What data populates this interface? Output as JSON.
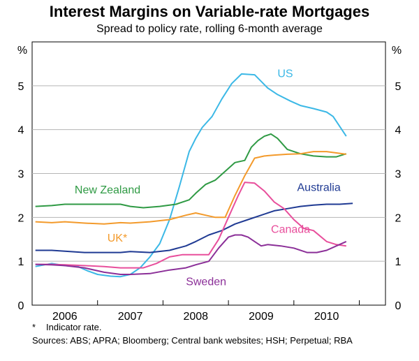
{
  "chart_data": {
    "type": "line",
    "title": "Interest Margins on Variable-rate Mortgages",
    "subtitle": "Spread to policy rate, rolling 6-month average",
    "ylabel_left": "%",
    "ylabel_right": "%",
    "ylim": [
      0,
      6
    ],
    "xlim": [
      2005.5,
      2010.9
    ],
    "yticks": [
      0,
      1,
      2,
      3,
      4,
      5
    ],
    "ytick_labels": [
      "0",
      "1",
      "2",
      "3",
      "4",
      "5"
    ],
    "xtick_labels": [
      {
        "label": "2006",
        "x": 2006
      },
      {
        "label": "2007",
        "x": 2007
      },
      {
        "label": "2008",
        "x": 2008
      },
      {
        "label": "2009",
        "x": 2009
      },
      {
        "label": "2010",
        "x": 2010
      }
    ],
    "series": [
      {
        "name": "US",
        "label": "US",
        "color": "#3bb8e6",
        "label_pos": {
          "x": 2009.25,
          "y": 5.2
        },
        "x": [
          2005.55,
          2005.8,
          2006.0,
          2006.2,
          2006.35,
          2006.5,
          2006.7,
          2006.85,
          2007.0,
          2007.15,
          2007.3,
          2007.45,
          2007.6,
          2007.75,
          2007.9,
          2008.0,
          2008.1,
          2008.25,
          2008.4,
          2008.55,
          2008.7,
          2008.8,
          2008.9,
          2009.0,
          2009.1,
          2009.25,
          2009.45,
          2009.6,
          2009.8,
          2010.0,
          2010.1,
          2010.3
        ],
        "values": [
          0.88,
          0.95,
          0.9,
          0.88,
          0.78,
          0.7,
          0.66,
          0.65,
          0.7,
          0.85,
          1.1,
          1.4,
          1.95,
          2.7,
          3.5,
          3.8,
          4.05,
          4.3,
          4.7,
          5.05,
          5.27,
          5.26,
          5.25,
          5.1,
          4.95,
          4.8,
          4.65,
          4.55,
          4.48,
          4.4,
          4.3,
          3.85
        ]
      },
      {
        "name": "New Zealand",
        "label": "New Zealand",
        "color": "#2f9a44",
        "label_pos": {
          "x": 2006.15,
          "y": 2.55
        },
        "x": [
          2005.55,
          2005.8,
          2006.0,
          2006.3,
          2006.6,
          2006.85,
          2007.0,
          2007.2,
          2007.45,
          2007.7,
          2007.9,
          2008.0,
          2008.15,
          2008.3,
          2008.45,
          2008.6,
          2008.75,
          2008.85,
          2008.95,
          2009.05,
          2009.15,
          2009.25,
          2009.4,
          2009.6,
          2009.8,
          2010.0,
          2010.15,
          2010.3
        ],
        "values": [
          2.25,
          2.27,
          2.3,
          2.3,
          2.3,
          2.3,
          2.25,
          2.22,
          2.25,
          2.3,
          2.4,
          2.55,
          2.75,
          2.85,
          3.05,
          3.25,
          3.3,
          3.6,
          3.75,
          3.85,
          3.9,
          3.8,
          3.55,
          3.45,
          3.4,
          3.38,
          3.38,
          3.45
        ]
      },
      {
        "name": "UK*",
        "label": "UK*",
        "color": "#f39a2b",
        "label_pos": {
          "x": 2006.65,
          "y": 1.45
        },
        "x": [
          2005.55,
          2005.8,
          2006.0,
          2006.3,
          2006.6,
          2006.85,
          2007.0,
          2007.3,
          2007.6,
          2007.85,
          2008.0,
          2008.15,
          2008.3,
          2008.45,
          2008.6,
          2008.75,
          2008.9,
          2009.05,
          2009.2,
          2009.4,
          2009.6,
          2009.8,
          2010.0,
          2010.15,
          2010.3
        ],
        "values": [
          1.9,
          1.88,
          1.9,
          1.87,
          1.85,
          1.88,
          1.87,
          1.9,
          1.95,
          2.05,
          2.1,
          2.05,
          2.0,
          2.0,
          2.5,
          2.95,
          3.35,
          3.4,
          3.42,
          3.44,
          3.45,
          3.5,
          3.5,
          3.47,
          3.44
        ]
      },
      {
        "name": "Australia",
        "label": "Australia",
        "color": "#1f3a93",
        "label_pos": {
          "x": 2009.55,
          "y": 2.6
        },
        "x": [
          2005.55,
          2005.8,
          2006.0,
          2006.3,
          2006.6,
          2006.85,
          2007.0,
          2007.3,
          2007.6,
          2007.85,
          2008.0,
          2008.2,
          2008.4,
          2008.6,
          2008.8,
          2009.0,
          2009.2,
          2009.4,
          2009.6,
          2009.8,
          2010.0,
          2010.2,
          2010.4
        ],
        "values": [
          1.25,
          1.25,
          1.23,
          1.2,
          1.2,
          1.2,
          1.22,
          1.2,
          1.25,
          1.35,
          1.45,
          1.6,
          1.7,
          1.85,
          1.95,
          2.05,
          2.15,
          2.2,
          2.25,
          2.28,
          2.3,
          2.3,
          2.32
        ]
      },
      {
        "name": "Canada",
        "label": "Canada",
        "color": "#e84f9c",
        "label_pos": {
          "x": 2009.15,
          "y": 1.65
        },
        "x": [
          2005.55,
          2005.8,
          2006.0,
          2006.3,
          2006.6,
          2006.85,
          2007.0,
          2007.2,
          2007.4,
          2007.6,
          2007.8,
          2008.0,
          2008.2,
          2008.35,
          2008.5,
          2008.65,
          2008.75,
          2008.9,
          2009.05,
          2009.2,
          2009.35,
          2009.5,
          2009.65,
          2009.8,
          2010.0,
          2010.15,
          2010.3
        ],
        "values": [
          0.93,
          0.93,
          0.92,
          0.9,
          0.88,
          0.85,
          0.85,
          0.85,
          0.95,
          1.1,
          1.15,
          1.15,
          1.15,
          1.5,
          2.0,
          2.5,
          2.8,
          2.78,
          2.6,
          2.35,
          2.2,
          1.95,
          1.75,
          1.7,
          1.45,
          1.38,
          1.35
        ]
      },
      {
        "name": "Sweden",
        "label": "Sweden",
        "color": "#8b2f98",
        "label_pos": {
          "x": 2007.85,
          "y": 0.45
        },
        "x": [
          2005.55,
          2005.8,
          2006.0,
          2006.3,
          2006.6,
          2006.85,
          2007.0,
          2007.3,
          2007.6,
          2007.85,
          2008.0,
          2008.2,
          2008.35,
          2008.5,
          2008.6,
          2008.7,
          2008.8,
          2008.9,
          2009.0,
          2009.1,
          2009.3,
          2009.5,
          2009.7,
          2009.85,
          2010.0,
          2010.15,
          2010.3
        ],
        "values": [
          0.93,
          0.92,
          0.9,
          0.85,
          0.75,
          0.7,
          0.7,
          0.72,
          0.8,
          0.85,
          0.92,
          1.0,
          1.3,
          1.55,
          1.6,
          1.6,
          1.55,
          1.45,
          1.35,
          1.38,
          1.35,
          1.3,
          1.2,
          1.2,
          1.25,
          1.35,
          1.45
        ]
      }
    ]
  },
  "footnote": {
    "marker": "*",
    "text": "Indicator rate."
  },
  "sources": "Sources: ABS; APRA; Bloomberg; Central bank websites; HSH; Perpetual; RBA"
}
